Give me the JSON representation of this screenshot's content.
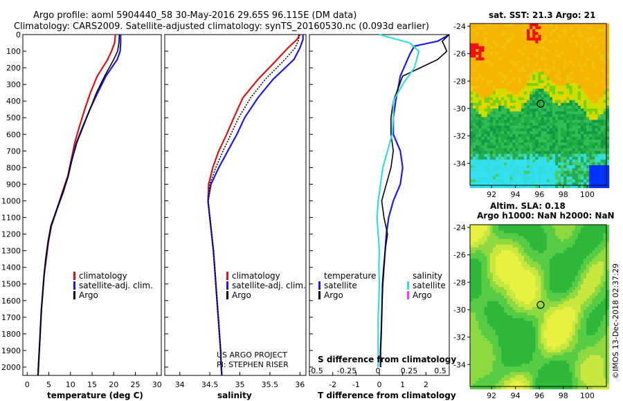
{
  "header": {
    "line1": "Argo profile: aoml 5904440_58 30-May-2016 29.65S 96.115E (DM data)",
    "line2": "Climatology: CARS2009. Satellite-adjusted climatology: synTS_20160530.nc (0.093d earlier)"
  },
  "colors": {
    "climatology": "#dd1111",
    "satellite": "#1a1ae6",
    "argo": "#000000",
    "sat_salinity": "#33dddd",
    "argo_salinity": "#ff33ff"
  },
  "chart_data": [
    {
      "type": "line",
      "id": "temperature",
      "xlabel": "temperature (deg C)",
      "xlim": [
        -1,
        31
      ],
      "ylim": [
        2050,
        0
      ],
      "xticks": [
        0,
        5,
        10,
        15,
        20,
        25,
        30
      ],
      "yticks": [
        0,
        100,
        200,
        300,
        400,
        500,
        600,
        700,
        800,
        900,
        1000,
        1100,
        1200,
        1300,
        1400,
        1500,
        1600,
        1700,
        1800,
        1900,
        2000
      ],
      "legend": [
        "climatology",
        "satellite-adj. clim.",
        "Argo"
      ],
      "series": [
        {
          "name": "climatology",
          "x": [
            20.4,
            20.2,
            19.5,
            18.6,
            16.2,
            14.6,
            13.3,
            12.1,
            11.0,
            10.2,
            9.4,
            8.1,
            6.9,
            5.6,
            4.9,
            4.4,
            3.9,
            3.6,
            3.3,
            3.1,
            2.9,
            2.7,
            2.5
          ],
          "y": [
            0,
            50,
            100,
            150,
            250,
            350,
            450,
            550,
            650,
            750,
            850,
            950,
            1050,
            1150,
            1250,
            1350,
            1450,
            1550,
            1650,
            1750,
            1850,
            1950,
            2050
          ]
        },
        {
          "name": "satellite-adj. clim.",
          "x": [
            21.6,
            21.6,
            21.5,
            20.8,
            18.2,
            16.3,
            14.5,
            12.9,
            11.4,
            10.3,
            9.5,
            8.3,
            6.9,
            5.5,
            4.8,
            4.3,
            3.9,
            3.6,
            3.3,
            3.1,
            2.9,
            2.7,
            2.5
          ],
          "y": [
            0,
            50,
            100,
            150,
            250,
            350,
            450,
            550,
            650,
            750,
            850,
            950,
            1050,
            1150,
            1250,
            1350,
            1450,
            1550,
            1650,
            1750,
            1850,
            1950,
            2050
          ]
        },
        {
          "name": "Argo",
          "x": [
            21.3,
            21.2,
            20.9,
            20.0,
            17.9,
            16.0,
            14.5,
            13.0,
            11.5,
            10.4,
            9.5,
            8.2,
            6.8,
            5.5,
            4.8,
            4.3,
            3.9,
            3.6,
            3.3,
            3.1,
            2.9,
            2.7,
            2.5
          ],
          "y": [
            0,
            50,
            100,
            150,
            250,
            350,
            450,
            550,
            650,
            750,
            850,
            950,
            1050,
            1150,
            1250,
            1350,
            1450,
            1550,
            1650,
            1750,
            1850,
            1950,
            2050
          ]
        }
      ]
    },
    {
      "type": "line",
      "id": "salinity",
      "xlabel": "salinity",
      "xlim": [
        33.75,
        36.1
      ],
      "ylim": [
        2050,
        0
      ],
      "xticks": [
        34,
        34.5,
        35,
        35.5,
        36
      ],
      "xticklabels": [
        "34",
        "34.5",
        "35",
        "35.5",
        "36"
      ],
      "legend": [
        "climatology",
        "satellite-adj. clim.",
        "Argo"
      ],
      "credit": [
        "US ARGO PROJECT",
        "PI: STEPHEN RISER"
      ],
      "series": [
        {
          "name": "climatology",
          "x": [
            36.0,
            35.95,
            35.8,
            35.62,
            35.3,
            35.05,
            34.9,
            34.78,
            34.65,
            34.55,
            34.48,
            34.47,
            34.5,
            34.53,
            34.56,
            34.58,
            34.6,
            34.62,
            34.64,
            34.66,
            34.68,
            34.69,
            34.7
          ],
          "y": [
            0,
            30,
            80,
            150,
            270,
            380,
            500,
            600,
            700,
            800,
            900,
            1000,
            1100,
            1200,
            1300,
            1400,
            1500,
            1600,
            1700,
            1800,
            1900,
            2000,
            2050
          ]
        },
        {
          "name": "satellite-adj. clim.",
          "x": [
            36.05,
            36.05,
            36.0,
            35.9,
            35.55,
            35.3,
            35.08,
            34.95,
            34.8,
            34.65,
            34.52,
            34.47,
            34.5,
            34.53,
            34.56,
            34.58,
            34.6,
            34.62,
            34.64,
            34.66,
            34.68,
            34.69,
            34.7
          ],
          "y": [
            0,
            30,
            80,
            150,
            270,
            380,
            500,
            600,
            700,
            800,
            900,
            1000,
            1100,
            1200,
            1300,
            1400,
            1500,
            1600,
            1700,
            1800,
            1900,
            2000,
            2050
          ]
        },
        {
          "name": "Argo",
          "x": [
            35.98,
            35.98,
            35.92,
            35.75,
            35.42,
            35.18,
            34.98,
            34.85,
            34.72,
            34.6,
            34.5,
            34.47,
            34.5,
            34.53,
            34.56,
            34.58,
            34.6,
            34.62,
            34.64,
            34.66,
            34.68,
            34.69,
            34.7
          ],
          "y": [
            0,
            30,
            80,
            150,
            270,
            380,
            500,
            600,
            700,
            800,
            900,
            1000,
            1100,
            1200,
            1300,
            1400,
            1500,
            1600,
            1700,
            1800,
            1900,
            2000,
            2050
          ]
        }
      ]
    },
    {
      "type": "line",
      "id": "difference",
      "xlabel": "T difference from climatology",
      "toplabel": "S difference from climatology",
      "xlim": [
        -3,
        3
      ],
      "ylim": [
        2050,
        0
      ],
      "xticks": [
        -2,
        -1,
        0,
        1,
        2
      ],
      "sticks": [
        -0.5,
        -0.25,
        0,
        0.25,
        0.5
      ],
      "sticklabels": [
        "-0.5",
        "-0.25",
        "0",
        "0.25",
        "0.5"
      ],
      "legend_temperature": {
        "title": "temperature",
        "items": [
          "satellite",
          "Argo"
        ]
      },
      "legend_salinity": {
        "title": "salinity",
        "items": [
          "satellite",
          "Argo"
        ]
      },
      "series": [
        {
          "name": "T satellite",
          "x": [
            3.0,
            2.5,
            1.5,
            1.3,
            0.9,
            0.7,
            0.6,
            0.6,
            0.9,
            1.0,
            0.9,
            0.6,
            0.4,
            0.3,
            0.25,
            0.2,
            0.15,
            0.12,
            0.1,
            0.08,
            0.05,
            0.05
          ],
          "y": [
            0,
            40,
            70,
            120,
            250,
            400,
            500,
            600,
            700,
            800,
            900,
            1000,
            1100,
            1200,
            1300,
            1400,
            1500,
            1600,
            1700,
            1800,
            1900,
            2000
          ]
        },
        {
          "name": "T Argo",
          "x": [
            3.0,
            2.7,
            2.9,
            2.5,
            1.0,
            0.6,
            0.5,
            0.5,
            0.6,
            0.5,
            0.3,
            0.1,
            0.2,
            0.35,
            0.25,
            0.18,
            0.13,
            0.12,
            0.1,
            0.08,
            0.05,
            0.05
          ],
          "y": [
            0,
            40,
            100,
            150,
            250,
            400,
            500,
            600,
            700,
            800,
            900,
            1000,
            1100,
            1200,
            1300,
            1400,
            1500,
            1600,
            1700,
            1800,
            1900,
            2000
          ]
        },
        {
          "name": "S satellite",
          "x": [
            0,
            1.3,
            1.7,
            1.5,
            1.0,
            0.6,
            0.6,
            0.55,
            0.35,
            0.15,
            0.05,
            -0.05,
            -0.1,
            -0.05,
            0.0,
            -0.02,
            0.0,
            -0.02,
            -0.05,
            -0.05,
            -0.05
          ],
          "y": [
            0,
            50,
            100,
            200,
            300,
            400,
            500,
            600,
            700,
            800,
            900,
            1000,
            1100,
            1200,
            1300,
            1400,
            1500,
            1600,
            1700,
            1800,
            2000
          ]
        }
      ]
    }
  ],
  "maps": [
    {
      "id": "sst",
      "title": "sat. SST: 21.3 Argo: 21",
      "xticks": [
        92,
        94,
        96,
        98,
        100
      ],
      "yticks": [
        -24,
        -26,
        -28,
        -30,
        -32,
        -34
      ],
      "xlim": [
        90.2,
        101.6
      ],
      "ylim": [
        -35.6,
        -23.8
      ],
      "marker": {
        "lon": 96.1,
        "lat": -29.65
      }
    },
    {
      "id": "sla",
      "title1": "Altim. SLA: 0.18",
      "title2": "Argo h1000: NaN h2000: NaN",
      "xticks": [
        92,
        94,
        96,
        98,
        100
      ],
      "yticks": [
        -24,
        -26,
        -28,
        -30,
        -32,
        -34
      ],
      "xlim": [
        90.2,
        101.6
      ],
      "ylim": [
        -35.6,
        -23.8
      ],
      "marker": {
        "lon": 96.1,
        "lat": -29.65
      }
    }
  ],
  "footer": {
    "credit": "©IMOS 13-Dec-2018 02:37:29"
  }
}
